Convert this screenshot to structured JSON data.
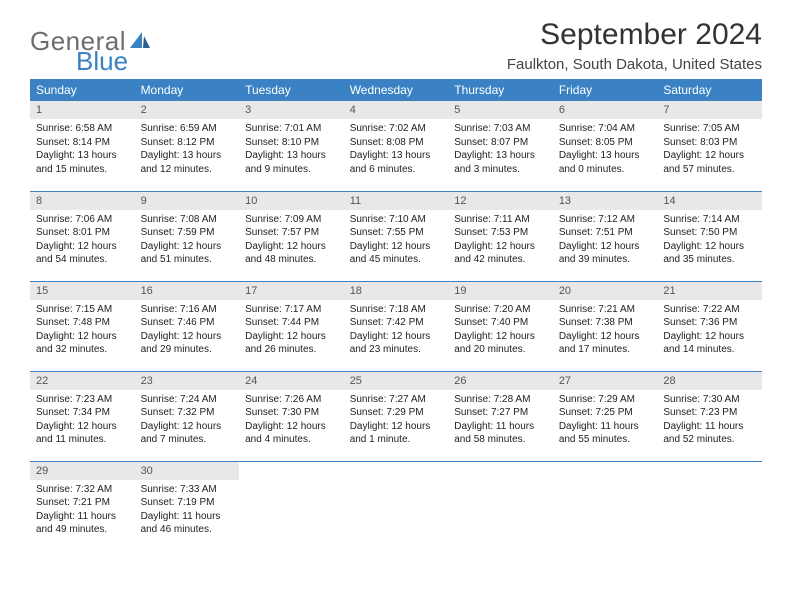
{
  "logo": {
    "part1": "General",
    "part2": "Blue"
  },
  "title": "September 2024",
  "location": "Faulkton, South Dakota, United States",
  "colors": {
    "accent": "#3a82c4",
    "header_text": "#ffffff",
    "daynum_bg": "#e8e8e8",
    "daynum_fg": "#555555",
    "body_text": "#222222",
    "logo_gray": "#6e6e6e"
  },
  "weekdays": [
    "Sunday",
    "Monday",
    "Tuesday",
    "Wednesday",
    "Thursday",
    "Friday",
    "Saturday"
  ],
  "days": [
    {
      "n": "1",
      "sr": "6:58 AM",
      "ss": "8:14 PM",
      "dl": "13 hours and 15 minutes."
    },
    {
      "n": "2",
      "sr": "6:59 AM",
      "ss": "8:12 PM",
      "dl": "13 hours and 12 minutes."
    },
    {
      "n": "3",
      "sr": "7:01 AM",
      "ss": "8:10 PM",
      "dl": "13 hours and 9 minutes."
    },
    {
      "n": "4",
      "sr": "7:02 AM",
      "ss": "8:08 PM",
      "dl": "13 hours and 6 minutes."
    },
    {
      "n": "5",
      "sr": "7:03 AM",
      "ss": "8:07 PM",
      "dl": "13 hours and 3 minutes."
    },
    {
      "n": "6",
      "sr": "7:04 AM",
      "ss": "8:05 PM",
      "dl": "13 hours and 0 minutes."
    },
    {
      "n": "7",
      "sr": "7:05 AM",
      "ss": "8:03 PM",
      "dl": "12 hours and 57 minutes."
    },
    {
      "n": "8",
      "sr": "7:06 AM",
      "ss": "8:01 PM",
      "dl": "12 hours and 54 minutes."
    },
    {
      "n": "9",
      "sr": "7:08 AM",
      "ss": "7:59 PM",
      "dl": "12 hours and 51 minutes."
    },
    {
      "n": "10",
      "sr": "7:09 AM",
      "ss": "7:57 PM",
      "dl": "12 hours and 48 minutes."
    },
    {
      "n": "11",
      "sr": "7:10 AM",
      "ss": "7:55 PM",
      "dl": "12 hours and 45 minutes."
    },
    {
      "n": "12",
      "sr": "7:11 AM",
      "ss": "7:53 PM",
      "dl": "12 hours and 42 minutes."
    },
    {
      "n": "13",
      "sr": "7:12 AM",
      "ss": "7:51 PM",
      "dl": "12 hours and 39 minutes."
    },
    {
      "n": "14",
      "sr": "7:14 AM",
      "ss": "7:50 PM",
      "dl": "12 hours and 35 minutes."
    },
    {
      "n": "15",
      "sr": "7:15 AM",
      "ss": "7:48 PM",
      "dl": "12 hours and 32 minutes."
    },
    {
      "n": "16",
      "sr": "7:16 AM",
      "ss": "7:46 PM",
      "dl": "12 hours and 29 minutes."
    },
    {
      "n": "17",
      "sr": "7:17 AM",
      "ss": "7:44 PM",
      "dl": "12 hours and 26 minutes."
    },
    {
      "n": "18",
      "sr": "7:18 AM",
      "ss": "7:42 PM",
      "dl": "12 hours and 23 minutes."
    },
    {
      "n": "19",
      "sr": "7:20 AM",
      "ss": "7:40 PM",
      "dl": "12 hours and 20 minutes."
    },
    {
      "n": "20",
      "sr": "7:21 AM",
      "ss": "7:38 PM",
      "dl": "12 hours and 17 minutes."
    },
    {
      "n": "21",
      "sr": "7:22 AM",
      "ss": "7:36 PM",
      "dl": "12 hours and 14 minutes."
    },
    {
      "n": "22",
      "sr": "7:23 AM",
      "ss": "7:34 PM",
      "dl": "12 hours and 11 minutes."
    },
    {
      "n": "23",
      "sr": "7:24 AM",
      "ss": "7:32 PM",
      "dl": "12 hours and 7 minutes."
    },
    {
      "n": "24",
      "sr": "7:26 AM",
      "ss": "7:30 PM",
      "dl": "12 hours and 4 minutes."
    },
    {
      "n": "25",
      "sr": "7:27 AM",
      "ss": "7:29 PM",
      "dl": "12 hours and 1 minute."
    },
    {
      "n": "26",
      "sr": "7:28 AM",
      "ss": "7:27 PM",
      "dl": "11 hours and 58 minutes."
    },
    {
      "n": "27",
      "sr": "7:29 AM",
      "ss": "7:25 PM",
      "dl": "11 hours and 55 minutes."
    },
    {
      "n": "28",
      "sr": "7:30 AM",
      "ss": "7:23 PM",
      "dl": "11 hours and 52 minutes."
    },
    {
      "n": "29",
      "sr": "7:32 AM",
      "ss": "7:21 PM",
      "dl": "11 hours and 49 minutes."
    },
    {
      "n": "30",
      "sr": "7:33 AM",
      "ss": "7:19 PM",
      "dl": "11 hours and 46 minutes."
    }
  ],
  "labels": {
    "sunrise": "Sunrise:",
    "sunset": "Sunset:",
    "daylight": "Daylight:"
  }
}
